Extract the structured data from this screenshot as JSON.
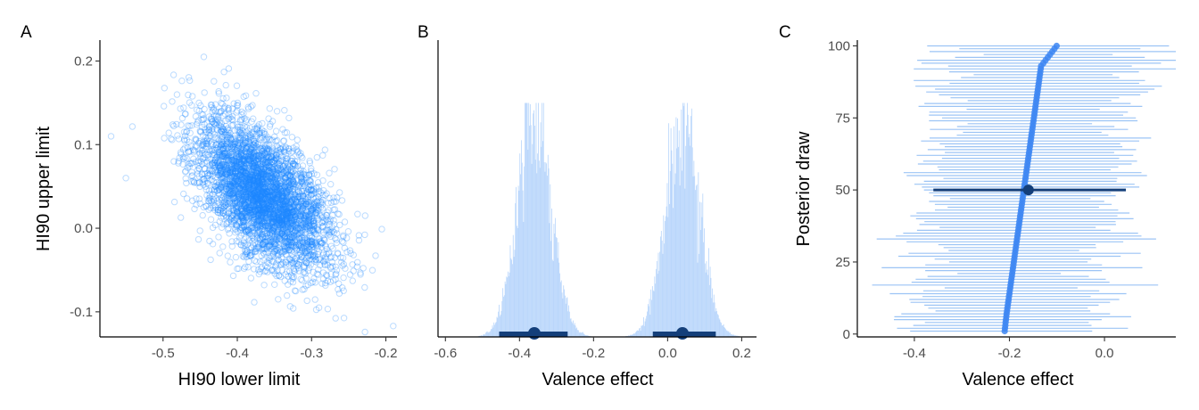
{
  "chart_data": [
    {
      "panel": "A",
      "type": "scatter",
      "xlabel": "HI90 lower limit",
      "ylabel": "HI90 upper limit",
      "xlim": [
        -0.585,
        -0.185
      ],
      "ylim": [
        -0.13,
        0.225
      ],
      "x_ticks": [
        -0.5,
        -0.4,
        -0.3,
        -0.2
      ],
      "x_tick_labels": [
        "-0.5",
        "-0.4",
        "-0.3",
        "-0.2"
      ],
      "y_ticks": [
        -0.1,
        0.0,
        0.1,
        0.2
      ],
      "y_tick_labels": [
        "-0.1",
        "0.0",
        "0.1",
        "0.2"
      ],
      "grid": false,
      "marker": "hollow-circle",
      "color": "#1e88ff",
      "n_points": 4000,
      "distribution": {
        "mean_x": -0.365,
        "mean_y": 0.04,
        "sd_x": 0.045,
        "sd_y": 0.045,
        "correlation": -0.55
      },
      "extreme_points": [
        {
          "x": -0.57,
          "y": 0.11
        },
        {
          "x": -0.55,
          "y": 0.06
        },
        {
          "x": -0.445,
          "y": 0.205
        },
        {
          "x": -0.19,
          "y": -0.117
        },
        {
          "x": -0.345,
          "y": -0.085
        },
        {
          "x": -0.29,
          "y": -0.095
        }
      ]
    },
    {
      "panel": "B",
      "type": "histogram",
      "xlabel": "Valence effect",
      "ylabel": "",
      "xlim": [
        -0.62,
        0.24
      ],
      "x_ticks": [
        -0.6,
        -0.4,
        -0.2,
        0.0,
        0.2
      ],
      "x_tick_labels": [
        "-0.6",
        "-0.4",
        "-0.2",
        "0.0",
        "0.2"
      ],
      "y_ticks": [],
      "grid": false,
      "color": "#b9d6fb",
      "bin_width": 0.002,
      "components": [
        {
          "mean": -0.36,
          "sd": 0.045,
          "peak_density": 1.0
        },
        {
          "mean": 0.04,
          "sd": 0.045,
          "peak_density": 1.0
        }
      ],
      "intervals": [
        {
          "point": -0.36,
          "lower": -0.455,
          "upper": -0.27
        },
        {
          "point": 0.04,
          "lower": -0.04,
          "upper": 0.13
        }
      ],
      "interval_color": "#143f7a"
    },
    {
      "panel": "C",
      "type": "interval",
      "xlabel": "Valence effect",
      "ylabel": "Posterior draw",
      "xlim": [
        -0.52,
        0.15
      ],
      "ylim": [
        -1,
        102
      ],
      "x_ticks": [
        -0.4,
        -0.2,
        0.0
      ],
      "x_tick_labels": [
        "-0.4",
        "-0.2",
        "0.0"
      ],
      "y_ticks": [
        0,
        25,
        50,
        75,
        100
      ],
      "y_tick_labels": [
        "0",
        "25",
        "50",
        "75",
        "100"
      ],
      "grid": false,
      "n_draws": 100,
      "point_range": [
        -0.21,
        -0.1
      ],
      "interval_half_width_mean": 0.2,
      "line_color": "#9cc4f5",
      "point_color": "#3d86f2",
      "summary": {
        "draw": 50,
        "point": -0.16,
        "lower": -0.36,
        "upper": 0.045
      },
      "summary_color": "#143f7a"
    }
  ]
}
